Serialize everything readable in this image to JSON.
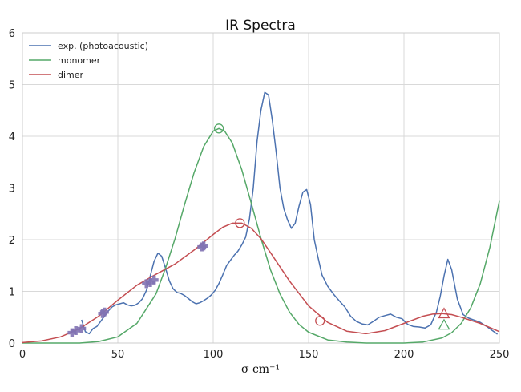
{
  "chart_data": {
    "type": "line",
    "title": "IR Spectra",
    "xlabel": "σ  cm⁻¹",
    "ylabel": "",
    "xlim": [
      0,
      250
    ],
    "ylim": [
      0,
      6
    ],
    "xticks": [
      "0",
      "50",
      "100",
      "150",
      "200",
      "250"
    ],
    "yticks": [
      "0",
      "1",
      "2",
      "3",
      "4",
      "5",
      "6"
    ],
    "grid": true,
    "legend": "top-left",
    "series": [
      {
        "name": "exp. (photoacoustic)",
        "color": "#4c72b0",
        "x": [
          31,
          33,
          35,
          37,
          39,
          41,
          43,
          45,
          47,
          49,
          51,
          53,
          55,
          57,
          59,
          61,
          63,
          65,
          67,
          69,
          71,
          73,
          75,
          77,
          79,
          81,
          83,
          85,
          87,
          89,
          91,
          93,
          95,
          97,
          99,
          101,
          103,
          105,
          107,
          109,
          111,
          113,
          115,
          117,
          119,
          121,
          123,
          125,
          127,
          129,
          131,
          133,
          135,
          137,
          139,
          141,
          143,
          145,
          147,
          149,
          151,
          153,
          155,
          157,
          160,
          163,
          166,
          169,
          172,
          175,
          178,
          181,
          184,
          187,
          190,
          193,
          196,
          199,
          202,
          205,
          208,
          211,
          214,
          217,
          219,
          221,
          223,
          225,
          228,
          231,
          234,
          237,
          240,
          243,
          246,
          249
        ],
        "y": [
          0.45,
          0.22,
          0.18,
          0.28,
          0.32,
          0.42,
          0.52,
          0.62,
          0.7,
          0.74,
          0.76,
          0.78,
          0.74,
          0.72,
          0.73,
          0.78,
          0.86,
          1.02,
          1.3,
          1.58,
          1.74,
          1.68,
          1.45,
          1.2,
          1.05,
          0.98,
          0.96,
          0.92,
          0.86,
          0.8,
          0.76,
          0.78,
          0.82,
          0.87,
          0.93,
          1.02,
          1.15,
          1.32,
          1.5,
          1.6,
          1.7,
          1.78,
          1.9,
          2.05,
          2.4,
          3.0,
          3.9,
          4.5,
          4.85,
          4.8,
          4.3,
          3.7,
          3.0,
          2.6,
          2.38,
          2.22,
          2.32,
          2.65,
          2.92,
          2.97,
          2.68,
          2.0,
          1.65,
          1.32,
          1.1,
          0.95,
          0.82,
          0.7,
          0.52,
          0.42,
          0.37,
          0.35,
          0.42,
          0.5,
          0.53,
          0.56,
          0.5,
          0.47,
          0.36,
          0.32,
          0.31,
          0.29,
          0.35,
          0.6,
          0.9,
          1.3,
          1.62,
          1.42,
          0.85,
          0.55,
          0.48,
          0.44,
          0.4,
          0.33,
          0.25,
          0.17
        ]
      },
      {
        "name": "monomer",
        "color": "#55a868",
        "x": [
          0,
          10,
          20,
          30,
          40,
          50,
          60,
          70,
          75,
          80,
          85,
          90,
          95,
          100,
          103,
          106,
          110,
          115,
          120,
          125,
          130,
          135,
          140,
          145,
          150,
          160,
          170,
          180,
          190,
          200,
          210,
          220,
          225,
          230,
          235,
          240,
          245,
          250
        ],
        "y": [
          0.0,
          0.0,
          0.0,
          0.0,
          0.03,
          0.12,
          0.38,
          0.95,
          1.45,
          2.02,
          2.68,
          3.3,
          3.8,
          4.1,
          4.15,
          4.1,
          3.87,
          3.35,
          2.7,
          2.03,
          1.42,
          0.95,
          0.6,
          0.36,
          0.21,
          0.06,
          0.02,
          0.0,
          0.0,
          0.0,
          0.02,
          0.1,
          0.2,
          0.38,
          0.68,
          1.15,
          1.85,
          2.75
        ]
      },
      {
        "name": "dimer",
        "color": "#c44e52",
        "x": [
          0,
          10,
          20,
          30,
          40,
          50,
          60,
          70,
          80,
          90,
          100,
          105,
          110,
          115,
          120,
          125,
          130,
          140,
          150,
          160,
          170,
          180,
          190,
          200,
          210,
          215,
          220,
          225,
          230,
          240,
          250
        ],
        "y": [
          0.01,
          0.04,
          0.12,
          0.28,
          0.52,
          0.83,
          1.12,
          1.33,
          1.53,
          1.8,
          2.1,
          2.24,
          2.32,
          2.32,
          2.22,
          2.02,
          1.75,
          1.2,
          0.72,
          0.4,
          0.23,
          0.18,
          0.24,
          0.38,
          0.52,
          0.56,
          0.57,
          0.55,
          0.5,
          0.38,
          0.22
        ]
      }
    ],
    "markers": {
      "exp_points": {
        "color": "#8172b2",
        "symbol": "plus",
        "x": [
          26,
          28,
          31,
          42,
          43,
          65,
          67,
          69,
          94,
          95
        ],
        "y": [
          0.2,
          0.24,
          0.28,
          0.57,
          0.6,
          1.15,
          1.17,
          1.22,
          1.86,
          1.88
        ]
      },
      "monomer_points": [
        {
          "symbol": "circle",
          "color": "#55a868",
          "x": 103,
          "y": 4.15
        },
        {
          "symbol": "triangle",
          "color": "#55a868",
          "x": 221,
          "y": 0.35
        }
      ],
      "dimer_points": [
        {
          "symbol": "circle",
          "color": "#c44e52",
          "x": 114,
          "y": 2.32
        },
        {
          "symbol": "circle",
          "color": "#c44e52",
          "x": 156,
          "y": 0.43
        },
        {
          "symbol": "triangle",
          "color": "#c44e52",
          "x": 221,
          "y": 0.57
        }
      ]
    }
  }
}
